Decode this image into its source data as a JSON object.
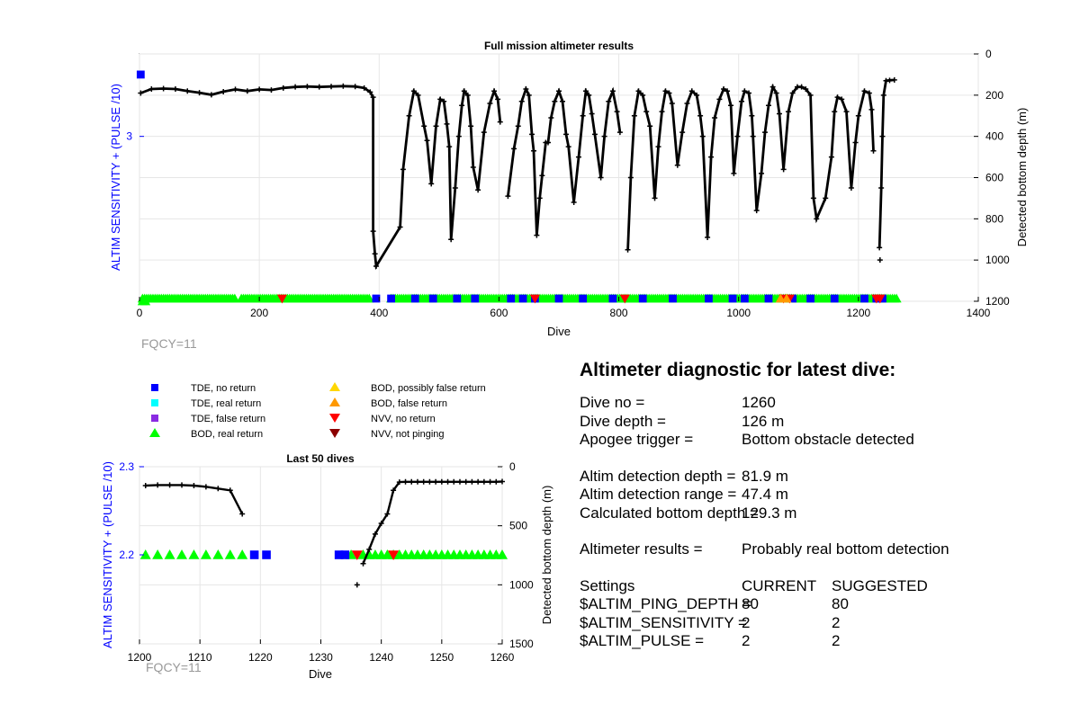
{
  "full_chart": {
    "title": "Full mission altimeter results",
    "xlabel": "Dive",
    "ylabel_left": "ALTIM SENSITIVITY + (PULSE /10)",
    "ylabel_right": "Detected bottom depth (m)",
    "footer": "FQCY=11"
  },
  "last_chart": {
    "title": "Last 50 dives",
    "xlabel": "Dive",
    "ylabel_left": "ALTIM SENSITIVITY + (PULSE /10)",
    "ylabel_right": "Detected bottom depth (m)",
    "footer": "FQCY=11"
  },
  "legend": [
    {
      "label": "TDE, no return",
      "marker": "square",
      "color": "#0000ff"
    },
    {
      "label": "TDE, real return",
      "marker": "square",
      "color": "#00ffff"
    },
    {
      "label": "TDE, false return",
      "marker": "square",
      "color": "#8a2be2"
    },
    {
      "label": "BOD, real return",
      "marker": "triangle-up",
      "color": "#00ff00"
    },
    {
      "label": "BOD, possibly false return",
      "marker": "triangle-up",
      "color": "#ffd700"
    },
    {
      "label": "BOD, false return",
      "marker": "triangle-up",
      "color": "#ff9900"
    },
    {
      "label": "NVV, no return",
      "marker": "triangle-down",
      "color": "#ff0000"
    },
    {
      "label": "NVV, not pinging",
      "marker": "triangle-down",
      "color": "#8b0000"
    }
  ],
  "diagnostic": {
    "heading": "Altimeter diagnostic for latest dive:",
    "dive_no_label": "Dive no =",
    "dive_no": "1260",
    "dive_depth_label": "Dive depth =",
    "dive_depth": "126 m",
    "apogee_label": "Apogee trigger =",
    "apogee": "Bottom obstacle detected",
    "det_depth_label": "Altim detection depth =",
    "det_depth": "81.9 m",
    "det_range_label": "Altim detection range =",
    "det_range": "47.4 m",
    "calc_bottom_label": "Calculated bottom depth =",
    "calc_bottom": "129.3 m",
    "results_label": "Altimeter results =",
    "results": "Probably real bottom detection",
    "settings_label": "Settings",
    "current_label": "CURRENT",
    "suggested_label": "SUGGESTED",
    "settings": [
      {
        "name": "$ALTIM_PING_DEPTH =",
        "current": "80",
        "suggested": "80"
      },
      {
        "name": "$ALTIM_SENSITIVITY =",
        "current": "2",
        "suggested": "2"
      },
      {
        "name": "$ALTIM_PULSE =",
        "current": "2",
        "suggested": "2"
      }
    ]
  },
  "colors": {
    "tde_no_return": "#0000ff",
    "bod_real_return": "#00ff00",
    "nvv_no_return": "#ff0000",
    "bod_false_return": "#ff9900",
    "depth_line": "#000000",
    "left_axis": "#0000ff"
  },
  "chart_data": [
    {
      "type": "line",
      "title": "Full mission altimeter results",
      "xlabel": "Dive",
      "ylabel": "ALTIM SENSITIVITY + (PULSE /10)",
      "y2label": "Detected bottom depth (m)",
      "xlim": [
        0,
        1400
      ],
      "x_ticks": [
        0,
        200,
        400,
        600,
        800,
        1000,
        1200,
        1400
      ],
      "y_ticks": [
        3
      ],
      "y2lim": [
        0,
        1200
      ],
      "y2_reversed": true,
      "y2_ticks": [
        0,
        200,
        400,
        600,
        800,
        1000,
        1200
      ],
      "grid": true,
      "bottom_depth": [
        [
          2,
          190
        ],
        [
          20,
          170
        ],
        [
          40,
          168
        ],
        [
          60,
          170
        ],
        [
          80,
          180
        ],
        [
          100,
          188
        ],
        [
          120,
          198
        ],
        [
          140,
          183
        ],
        [
          160,
          172
        ],
        [
          180,
          180
        ],
        [
          200,
          172
        ],
        [
          220,
          175
        ],
        [
          240,
          165
        ],
        [
          260,
          160
        ],
        [
          280,
          158
        ],
        [
          300,
          160
        ],
        [
          320,
          158
        ],
        [
          340,
          156
        ],
        [
          360,
          158
        ],
        [
          375,
          165
        ],
        [
          385,
          185
        ],
        [
          390,
          210
        ],
        [
          390,
          860
        ],
        [
          393,
          970
        ],
        [
          395,
          1030
        ],
        [
          435,
          840
        ],
        [
          440,
          560
        ],
        [
          450,
          300
        ],
        [
          458,
          180
        ],
        [
          465,
          200
        ],
        [
          475,
          350
        ],
        [
          480,
          420
        ],
        [
          487,
          630
        ],
        [
          495,
          350
        ],
        [
          502,
          220
        ],
        [
          508,
          230
        ],
        [
          513,
          340
        ],
        [
          517,
          450
        ],
        [
          520,
          900
        ],
        [
          527,
          650
        ],
        [
          533,
          400
        ],
        [
          538,
          250
        ],
        [
          542,
          180
        ],
        [
          548,
          200
        ],
        [
          553,
          350
        ],
        [
          557,
          550
        ],
        [
          565,
          660
        ],
        [
          575,
          380
        ],
        [
          585,
          240
        ],
        [
          592,
          180
        ],
        [
          598,
          220
        ],
        [
          602,
          330
        ],
        [
          615,
          690
        ],
        [
          625,
          460
        ],
        [
          632,
          350
        ],
        [
          638,
          230
        ],
        [
          645,
          170
        ],
        [
          650,
          200
        ],
        [
          655,
          390
        ],
        [
          658,
          470
        ],
        [
          663,
          880
        ],
        [
          668,
          700
        ],
        [
          672,
          590
        ],
        [
          678,
          430
        ],
        [
          682,
          430
        ],
        [
          687,
          310
        ],
        [
          693,
          230
        ],
        [
          700,
          180
        ],
        [
          706,
          230
        ],
        [
          712,
          390
        ],
        [
          716,
          450
        ],
        [
          725,
          720
        ],
        [
          733,
          500
        ],
        [
          740,
          300
        ],
        [
          745,
          180
        ],
        [
          750,
          200
        ],
        [
          755,
          290
        ],
        [
          760,
          390
        ],
        [
          770,
          600
        ],
        [
          776,
          400
        ],
        [
          783,
          230
        ],
        [
          790,
          180
        ],
        [
          797,
          280
        ],
        [
          802,
          380
        ],
        [
          815,
          950
        ],
        [
          820,
          600
        ],
        [
          826,
          300
        ],
        [
          833,
          180
        ],
        [
          840,
          200
        ],
        [
          846,
          280
        ],
        [
          852,
          350
        ],
        [
          860,
          700
        ],
        [
          866,
          450
        ],
        [
          872,
          280
        ],
        [
          878,
          180
        ],
        [
          884,
          190
        ],
        [
          889,
          240
        ],
        [
          898,
          540
        ],
        [
          906,
          380
        ],
        [
          914,
          240
        ],
        [
          922,
          180
        ],
        [
          930,
          200
        ],
        [
          936,
          300
        ],
        [
          940,
          400
        ],
        [
          948,
          890
        ],
        [
          954,
          500
        ],
        [
          960,
          310
        ],
        [
          968,
          220
        ],
        [
          975,
          170
        ],
        [
          981,
          180
        ],
        [
          987,
          250
        ],
        [
          992,
          580
        ],
        [
          998,
          400
        ],
        [
          1005,
          230
        ],
        [
          1010,
          180
        ],
        [
          1017,
          190
        ],
        [
          1022,
          300
        ],
        [
          1024,
          400
        ],
        [
          1030,
          760
        ],
        [
          1038,
          580
        ],
        [
          1044,
          380
        ],
        [
          1050,
          250
        ],
        [
          1057,
          160
        ],
        [
          1063,
          190
        ],
        [
          1068,
          290
        ],
        [
          1075,
          560
        ],
        [
          1083,
          280
        ],
        [
          1090,
          190
        ],
        [
          1098,
          160
        ],
        [
          1105,
          160
        ],
        [
          1112,
          170
        ],
        [
          1120,
          200
        ],
        [
          1125,
          700
        ],
        [
          1130,
          800
        ],
        [
          1145,
          700
        ],
        [
          1155,
          500
        ],
        [
          1160,
          280
        ],
        [
          1165,
          210
        ],
        [
          1172,
          220
        ],
        [
          1180,
          280
        ],
        [
          1188,
          650
        ],
        [
          1195,
          430
        ],
        [
          1200,
          300
        ],
        [
          1210,
          180
        ],
        [
          1218,
          190
        ],
        [
          1222,
          270
        ],
        [
          1225,
          470
        ],
        [
          1235,
          940
        ],
        [
          1238,
          650
        ],
        [
          1240,
          400
        ],
        [
          1242,
          200
        ],
        [
          1246,
          130
        ],
        [
          1252,
          128
        ],
        [
          1260,
          126
        ]
      ],
      "outlier_point": [
        1236,
        1000
      ],
      "series_markers": [
        {
          "name": "BOD, real return",
          "color": "#00ff00",
          "y": "baseline",
          "x_ranges": [
            [
              5,
              160
            ],
            [
              170,
              385
            ],
            [
              420,
              1265
            ]
          ]
        },
        {
          "name": "TDE, no return",
          "color": "#0000ff",
          "y": "baseline",
          "x": [
            395,
            420,
            460,
            490,
            530,
            560,
            620,
            640,
            660,
            700,
            740,
            790,
            840,
            890,
            950,
            990,
            1010,
            1050,
            1090,
            1120,
            1160,
            1210,
            1230,
            1240
          ]
        },
        {
          "name": "NVV, no return",
          "color": "#ff0000",
          "y": "baseline",
          "x": [
            238,
            660,
            810,
            1075,
            1085,
            1230,
            1236
          ]
        },
        {
          "name": "BOD, false return",
          "color": "#ff9900",
          "y": "baseline",
          "x": [
            1070,
            1080
          ]
        },
        {
          "name": "TDE, no return (sensitivity)",
          "color": "#0000ff",
          "y": 3.3,
          "x": [
            2
          ]
        },
        {
          "name": "BOD, real return (sensitivity)",
          "color": "#00ff00",
          "y": 2.2,
          "x": [
            5,
            10
          ]
        }
      ]
    },
    {
      "type": "line",
      "title": "Last 50 dives",
      "xlabel": "Dive",
      "ylabel": "ALTIM SENSITIVITY + (PULSE /10)",
      "y2label": "Detected bottom depth (m)",
      "xlim": [
        1200,
        1260
      ],
      "x_ticks": [
        1200,
        1210,
        1220,
        1230,
        1240,
        1250,
        1260
      ],
      "ylim": [
        2.1,
        2.3
      ],
      "y_ticks": [
        2.2,
        2.3
      ],
      "y2lim": [
        0,
        1500
      ],
      "y2_reversed": true,
      "y2_ticks": [
        0,
        500,
        1000,
        1500
      ],
      "grid": true,
      "bottom_depth_segments": [
        [
          [
            1201,
            160
          ],
          [
            1203,
            155
          ],
          [
            1205,
            155
          ],
          [
            1207,
            155
          ],
          [
            1209,
            160
          ],
          [
            1211,
            170
          ],
          [
            1213,
            185
          ],
          [
            1215,
            200
          ],
          [
            1217,
            400
          ]
        ],
        [
          [
            1237,
            820
          ],
          [
            1238,
            700
          ],
          [
            1239,
            570
          ],
          [
            1240,
            480
          ],
          [
            1241,
            400
          ],
          [
            1242,
            200
          ],
          [
            1243,
            130
          ],
          [
            1244,
            128
          ],
          [
            1245,
            128
          ],
          [
            1246,
            128
          ],
          [
            1247,
            128
          ],
          [
            1248,
            128
          ],
          [
            1249,
            128
          ],
          [
            1250,
            128
          ],
          [
            1251,
            128
          ],
          [
            1252,
            128
          ],
          [
            1253,
            128
          ],
          [
            1254,
            128
          ],
          [
            1255,
            128
          ],
          [
            1256,
            128
          ],
          [
            1257,
            128
          ],
          [
            1258,
            128
          ],
          [
            1259,
            128
          ],
          [
            1260,
            126
          ]
        ]
      ],
      "outlier_point": [
        1236,
        1000
      ],
      "series_markers": [
        {
          "name": "BOD, real return",
          "color": "#00ff00",
          "y": 2.2,
          "x": [
            1201,
            1203,
            1205,
            1207,
            1209,
            1211,
            1213,
            1215,
            1217,
            1235,
            1237,
            1238,
            1239,
            1240,
            1241,
            1242,
            1243,
            1244,
            1245,
            1246,
            1247,
            1248,
            1249,
            1250,
            1251,
            1252,
            1253,
            1254,
            1255,
            1256,
            1257,
            1258,
            1259,
            1260
          ]
        },
        {
          "name": "TDE, no return",
          "color": "#0000ff",
          "y": 2.2,
          "x": [
            1219,
            1221,
            1233,
            1234
          ]
        },
        {
          "name": "NVV, no return",
          "color": "#ff0000",
          "y": 2.2,
          "x": [
            1236,
            1242
          ]
        }
      ]
    }
  ]
}
